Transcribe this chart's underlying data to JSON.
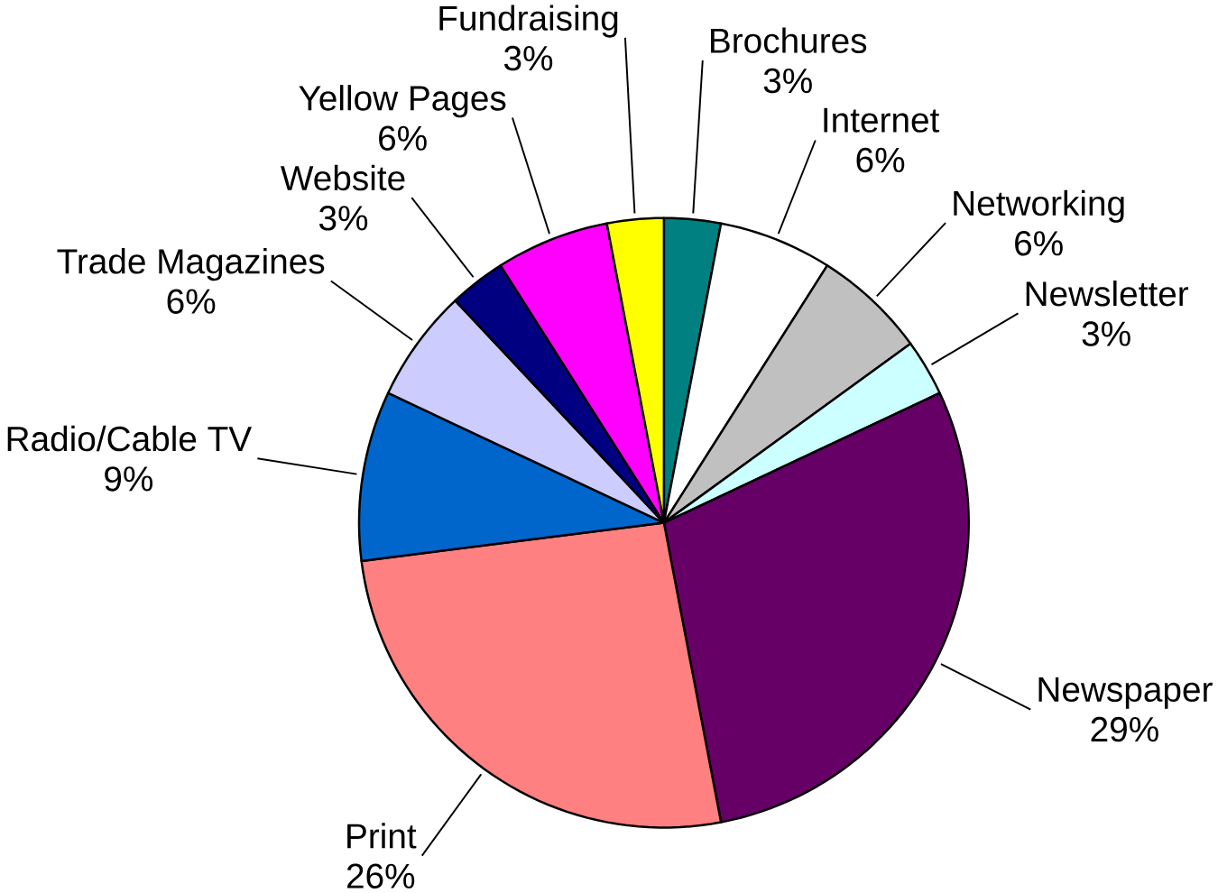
{
  "chart_data": {
    "type": "pie",
    "categories": [
      "Brochures",
      "Internet",
      "Networking",
      "Newsletter",
      "Newspaper",
      "Print",
      "Radio/Cable TV",
      "Trade Magazines",
      "Website",
      "Yellow Pages",
      "Fundraising"
    ],
    "values": [
      3,
      6,
      6,
      3,
      29,
      26,
      9,
      6,
      3,
      6,
      3
    ],
    "value_labels": [
      "3%",
      "6%",
      "6%",
      "3%",
      "29%",
      "26%",
      "9%",
      "6%",
      "3%",
      "6%",
      "3%"
    ],
    "colors": [
      "#008080",
      "#ffffff",
      "#c0c0c0",
      "#ccffff",
      "#660066",
      "#ff8080",
      "#0066cc",
      "#ccccff",
      "#000080",
      "#ff00ff",
      "#ffff00"
    ]
  }
}
